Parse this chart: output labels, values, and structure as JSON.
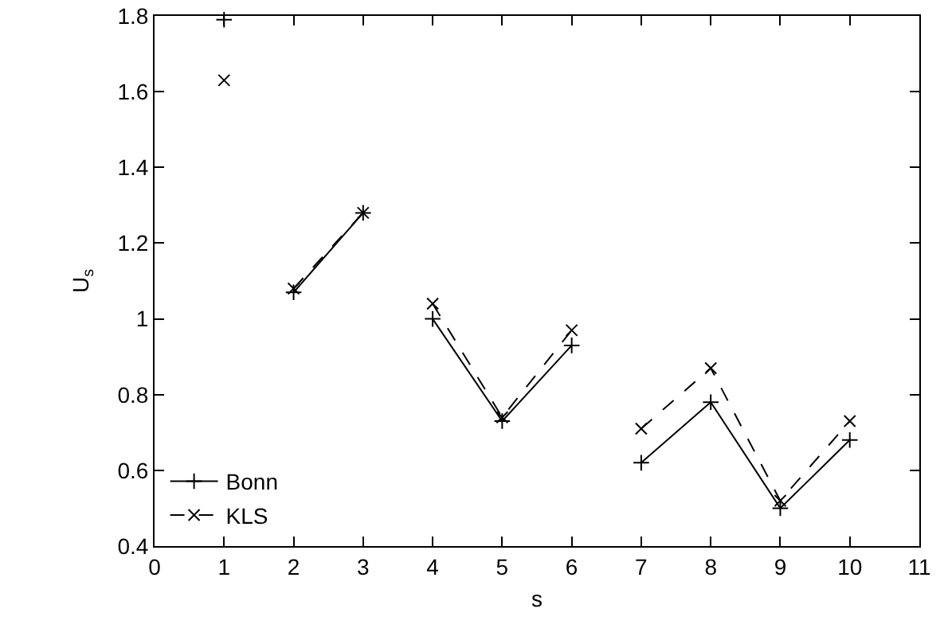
{
  "chart_data": {
    "type": "line",
    "xlabel": "s",
    "ylabel": "U$_{s}$",
    "x": [
      1,
      1.5,
      2,
      3,
      3.5,
      4,
      5,
      6,
      6.5,
      7,
      8,
      9,
      10
    ],
    "series": [
      {
        "name": "Bonn",
        "color": "#000000",
        "marker": "cross",
        "line_style": "solid",
        "values": [
          1.79,
          null,
          1.07,
          1.28,
          null,
          1.0,
          0.73,
          0.93,
          null,
          0.62,
          0.78,
          0.5,
          0.68
        ]
      },
      {
        "name": "KLS",
        "color": "#000000",
        "marker": "x",
        "line_style": "dashed",
        "values": [
          1.63,
          null,
          1.08,
          1.28,
          null,
          1.04,
          0.74,
          0.97,
          null,
          0.71,
          0.87,
          0.52,
          0.73
        ]
      }
    ],
    "xlim": [
      0,
      11
    ],
    "xticks": [
      0,
      1,
      2,
      3,
      4,
      5,
      6,
      7,
      8,
      9,
      10,
      11
    ],
    "ylim": [
      0.4,
      1.8
    ],
    "yticks": [
      0.4,
      0.6,
      0.8,
      1,
      1.2,
      1.4,
      1.6,
      1.8
    ],
    "grid": false,
    "legend": "bottom left"
  }
}
